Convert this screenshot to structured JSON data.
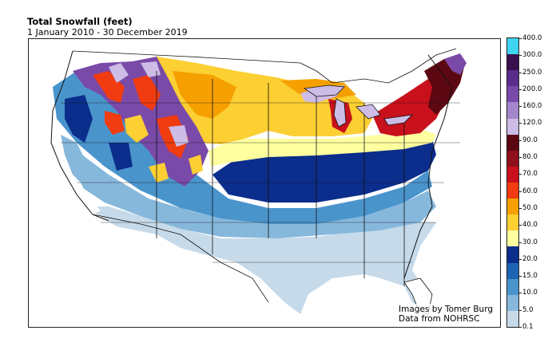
{
  "header": {
    "title": "Total Snowfall (feet)",
    "subtitle": "1 January 2010 - 30 December 2019"
  },
  "credits": {
    "line1": "Images by Tomer Burg",
    "line2": "Data from NOHRSC"
  },
  "legend": {
    "labels": [
      "400.0",
      "300.0",
      "250.0",
      "200.0",
      "160.0",
      "120.0",
      "90.0",
      "80.0",
      "70.0",
      "60.0",
      "50.0",
      "40.0",
      "30.0",
      "20.0",
      "15.0",
      "10.0",
      "5.0",
      "0.1"
    ],
    "colors": [
      "#3fd4f0",
      "#3a0f4e",
      "#5a2d8a",
      "#7a4aa8",
      "#a486cc",
      "#cdbce6",
      "#5c0812",
      "#8f0f1a",
      "#c8111c",
      "#f03c10",
      "#f5a000",
      "#fccf33",
      "#ffffa0",
      "#0b2d8c",
      "#1e64b4",
      "#4a94cc",
      "#86b8dc",
      "#c6daea"
    ]
  },
  "map": {
    "regions": [
      {
        "name": "deep-south",
        "color": "#c6daea"
      },
      {
        "name": "mid-south",
        "color": "#86b8dc"
      },
      {
        "name": "central-band",
        "color": "#4a94cc"
      },
      {
        "name": "dark-band",
        "color": "#0b2d8c"
      },
      {
        "name": "yellow-band",
        "color": "#ffffa0"
      },
      {
        "name": "northern-plains",
        "color": "#fccf33"
      },
      {
        "name": "lake-michigan",
        "color": "#cdbce6"
      },
      {
        "name": "northeast-red",
        "color": "#c8111c"
      },
      {
        "name": "new-england",
        "color": "#5c0812"
      },
      {
        "name": "mountains-purple",
        "color": "#7a4aa8"
      },
      {
        "name": "mountains-orange",
        "color": "#f03c10"
      }
    ]
  }
}
